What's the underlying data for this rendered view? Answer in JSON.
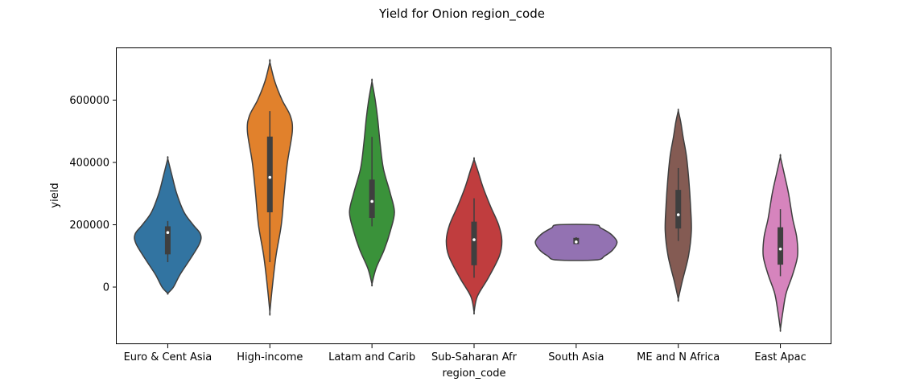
{
  "chart_data": {
    "type": "violin",
    "title": "Yield for Onion region_code",
    "xlabel": "region_code",
    "ylabel": "yield",
    "ylim": [
      -180000,
      760000
    ],
    "yticks": [
      0,
      200000,
      400000,
      600000
    ],
    "ytick_labels": [
      "0",
      "200000",
      "400000",
      "600000"
    ],
    "grid": false,
    "categories": [
      "Euro & Cent Asia",
      "High-income",
      "Latam and Carib",
      "Sub-Saharan Afr",
      "South Asia",
      "ME and N Africa",
      "East Apac"
    ],
    "series": [
      {
        "category": "Euro & Cent Asia",
        "color": "#3274a1",
        "min": 80000,
        "q1": 105000,
        "median": 175000,
        "q3": 195000,
        "max": 212000,
        "density": [
          [
            -20000,
            0
          ],
          [
            0,
            0.14
          ],
          [
            40000,
            0.3
          ],
          [
            90000,
            0.55
          ],
          [
            140000,
            0.78
          ],
          [
            170000,
            0.8
          ],
          [
            200000,
            0.62
          ],
          [
            240000,
            0.4
          ],
          [
            300000,
            0.22
          ],
          [
            360000,
            0.1
          ],
          [
            412000,
            0
          ]
        ]
      },
      {
        "category": "High-income",
        "color": "#e1812c",
        "min": 80000,
        "q1": 240000,
        "median": 352000,
        "q3": 483000,
        "max": 565000,
        "density": [
          [
            -80000,
            0
          ],
          [
            0,
            0.06
          ],
          [
            100000,
            0.15
          ],
          [
            200000,
            0.28
          ],
          [
            300000,
            0.35
          ],
          [
            400000,
            0.43
          ],
          [
            500000,
            0.55
          ],
          [
            550000,
            0.5
          ],
          [
            600000,
            0.3
          ],
          [
            660000,
            0.12
          ],
          [
            722000,
            0
          ]
        ]
      },
      {
        "category": "Latam and Carib",
        "color": "#3a923a",
        "min": 195000,
        "q1": 222000,
        "median": 275000,
        "q3": 345000,
        "max": 482000,
        "density": [
          [
            10000,
            0
          ],
          [
            60000,
            0.1
          ],
          [
            120000,
            0.3
          ],
          [
            180000,
            0.45
          ],
          [
            240000,
            0.55
          ],
          [
            300000,
            0.45
          ],
          [
            380000,
            0.28
          ],
          [
            460000,
            0.2
          ],
          [
            540000,
            0.14
          ],
          [
            600000,
            0.08
          ],
          [
            660000,
            0
          ]
        ]
      },
      {
        "category": "Sub-Saharan Afr",
        "color": "#c03d3e",
        "min": 30000,
        "q1": 70000,
        "median": 152000,
        "q3": 210000,
        "max": 285000,
        "density": [
          [
            -80000,
            0
          ],
          [
            -30000,
            0.08
          ],
          [
            30000,
            0.35
          ],
          [
            100000,
            0.62
          ],
          [
            150000,
            0.68
          ],
          [
            200000,
            0.6
          ],
          [
            260000,
            0.4
          ],
          [
            320000,
            0.22
          ],
          [
            370000,
            0.1
          ],
          [
            410000,
            0
          ]
        ]
      },
      {
        "category": "South Asia",
        "color": "#9372b2",
        "min": 138000,
        "q1": 138000,
        "median": 145000,
        "q3": 158000,
        "max": 160000,
        "density": [
          [
            87000,
            0.48
          ],
          [
            100000,
            0.7
          ],
          [
            120000,
            0.9
          ],
          [
            145000,
            1.0
          ],
          [
            170000,
            0.85
          ],
          [
            190000,
            0.6
          ],
          [
            200000,
            0.45
          ]
        ]
      },
      {
        "category": "ME and N Africa",
        "color": "#845b53",
        "min": 148000,
        "q1": 188000,
        "median": 232000,
        "q3": 312000,
        "max": 382000,
        "density": [
          [
            -38000,
            0
          ],
          [
            20000,
            0.1
          ],
          [
            100000,
            0.25
          ],
          [
            180000,
            0.32
          ],
          [
            260000,
            0.3
          ],
          [
            340000,
            0.26
          ],
          [
            420000,
            0.2
          ],
          [
            480000,
            0.12
          ],
          [
            530000,
            0.06
          ],
          [
            566000,
            0
          ]
        ]
      },
      {
        "category": "East Apac",
        "color": "#d684bd",
        "min": 35000,
        "q1": 72000,
        "median": 122000,
        "q3": 192000,
        "max": 250000,
        "density": [
          [
            -135000,
            0
          ],
          [
            -80000,
            0.06
          ],
          [
            -20000,
            0.14
          ],
          [
            40000,
            0.3
          ],
          [
            100000,
            0.42
          ],
          [
            160000,
            0.4
          ],
          [
            220000,
            0.3
          ],
          [
            300000,
            0.2
          ],
          [
            360000,
            0.1
          ],
          [
            418000,
            0
          ]
        ]
      }
    ]
  }
}
